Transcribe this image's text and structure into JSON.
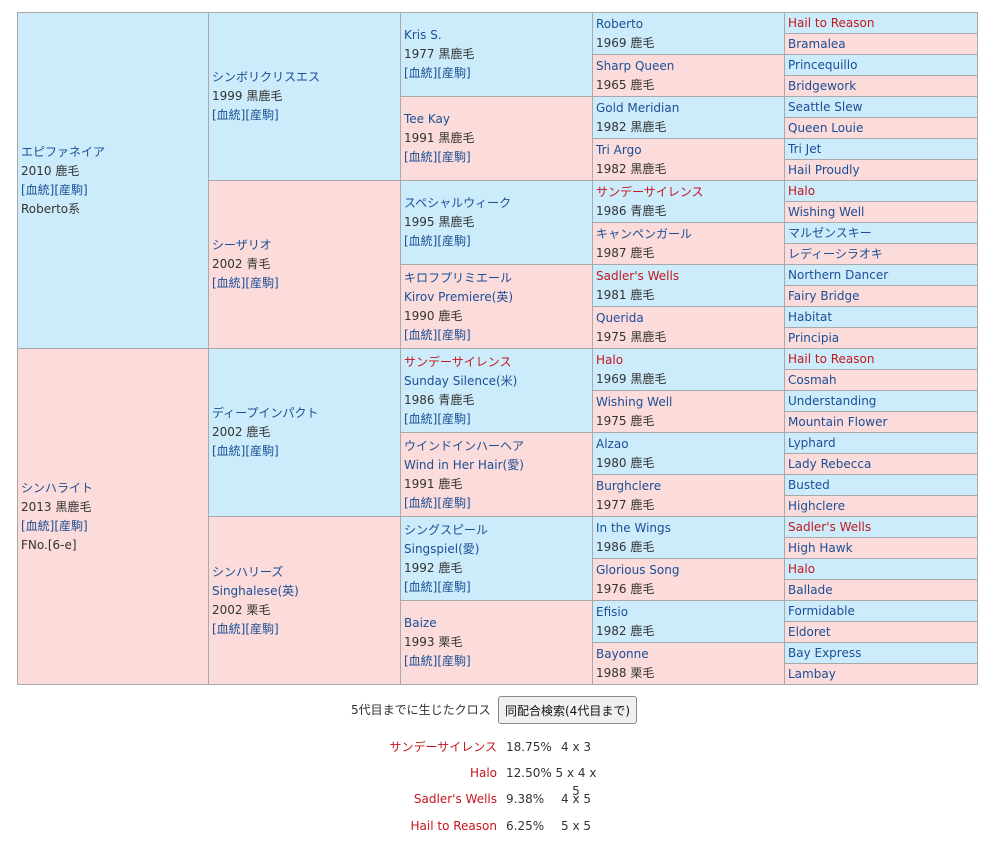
{
  "pedigree": {
    "g1": [
      {
        "name": "エピファネイア",
        "lines": [
          "2010 鹿毛"
        ],
        "links": "[血統][産駒]",
        "note": "Roberto系"
      },
      {
        "name": "シンハライト",
        "lines": [
          "2013 黒鹿毛"
        ],
        "links": "[血統][産駒]",
        "note": "FNo.[6-e]"
      }
    ],
    "g2": [
      {
        "name": "シンボリクリスエス",
        "lines": [
          "1999 黒鹿毛"
        ],
        "links": "[血統][産駒]"
      },
      {
        "name": "シーザリオ",
        "lines": [
          "2002 青毛"
        ],
        "links": "[血統][産駒]"
      },
      {
        "name": "ディープインパクト",
        "lines": [
          "2002 鹿毛"
        ],
        "links": "[血統][産駒]"
      },
      {
        "name": "シンハリーズ",
        "lines": [
          "Singhalese(英)",
          "2002 栗毛"
        ],
        "links": "[血統][産駒]"
      }
    ],
    "g3": [
      {
        "name": "Kris S.",
        "lines": [
          "1977 黒鹿毛"
        ],
        "links": "[血統][産駒]"
      },
      {
        "name": "Tee Kay",
        "lines": [
          "1991 黒鹿毛"
        ],
        "links": "[血統][産駒]"
      },
      {
        "name": "スペシャルウィーク",
        "lines": [
          "1995 黒鹿毛"
        ],
        "links": "[血統][産駒]"
      },
      {
        "name": "キロフプリミエール",
        "lines": [
          "Kirov Premiere(英)",
          "1990 鹿毛"
        ],
        "links": "[血統][産駒]"
      },
      {
        "name": "サンデーサイレンス",
        "lines": [
          "Sunday Silence(米)",
          "1986 青鹿毛"
        ],
        "links": "[血統][産駒]"
      },
      {
        "name": "ウインドインハーヘア",
        "lines": [
          "Wind in Her Hair(愛)",
          "1991 鹿毛"
        ],
        "links": "[血統][産駒]"
      },
      {
        "name": "シングスピール",
        "lines": [
          "Singspiel(愛)",
          "1992 鹿毛"
        ],
        "links": "[血統][産駒]"
      },
      {
        "name": "Baize",
        "lines": [
          "1993 栗毛"
        ],
        "links": "[血統][産駒]"
      }
    ],
    "g4": [
      {
        "name": "Roberto",
        "info": "1969 鹿毛"
      },
      {
        "name": "Sharp Queen",
        "info": "1965 鹿毛"
      },
      {
        "name": "Gold Meridian",
        "info": "1982 黒鹿毛"
      },
      {
        "name": "Tri Argo",
        "info": "1982 黒鹿毛"
      },
      {
        "name": "サンデーサイレンス",
        "info": "1986 青鹿毛"
      },
      {
        "name": "キャンペンガール",
        "info": "1987 鹿毛"
      },
      {
        "name": "Sadler's Wells",
        "info": "1981 鹿毛"
      },
      {
        "name": "Querida",
        "info": "1975 黒鹿毛"
      },
      {
        "name": "Halo",
        "info": "1969 黒鹿毛"
      },
      {
        "name": "Wishing Well",
        "info": "1975 鹿毛"
      },
      {
        "name": "Alzao",
        "info": "1980 鹿毛"
      },
      {
        "name": "Burghclere",
        "info": "1977 鹿毛"
      },
      {
        "name": "In the Wings",
        "info": "1986 鹿毛"
      },
      {
        "name": "Glorious Song",
        "info": "1976 鹿毛"
      },
      {
        "name": "Efisio",
        "info": "1982 鹿毛"
      },
      {
        "name": "Bayonne",
        "info": "1988 栗毛"
      }
    ],
    "g5": [
      {
        "name": "Hail to Reason"
      },
      {
        "name": "Bramalea"
      },
      {
        "name": "Princequillo"
      },
      {
        "name": "Bridgework"
      },
      {
        "name": "Seattle Slew"
      },
      {
        "name": "Queen Louie"
      },
      {
        "name": "Tri Jet"
      },
      {
        "name": "Hail Proudly"
      },
      {
        "name": "Halo"
      },
      {
        "name": "Wishing Well"
      },
      {
        "name": "マルゼンスキー"
      },
      {
        "name": "レディーシラオキ"
      },
      {
        "name": "Northern Dancer"
      },
      {
        "name": "Fairy Bridge"
      },
      {
        "name": "Habitat"
      },
      {
        "name": "Principia"
      },
      {
        "name": "Hail to Reason"
      },
      {
        "name": "Cosmah"
      },
      {
        "name": "Understanding"
      },
      {
        "name": "Mountain Flower"
      },
      {
        "name": "Lyphard"
      },
      {
        "name": "Lady Rebecca"
      },
      {
        "name": "Busted"
      },
      {
        "name": "Highclere"
      },
      {
        "name": "Sadler's Wells"
      },
      {
        "name": "High Hawk"
      },
      {
        "name": "Halo"
      },
      {
        "name": "Ballade"
      },
      {
        "name": "Formidable"
      },
      {
        "name": "Eldoret"
      },
      {
        "name": "Bay Express"
      },
      {
        "name": "Lambay"
      }
    ]
  },
  "crosses": {
    "title": "5代目までに生じたクロス",
    "search_button": "同配合検索(4代目まで)",
    "rows": [
      {
        "name": "サンデーサイレンス",
        "pct": "18.75%",
        "pattern": "4 x 3"
      },
      {
        "name": "Halo",
        "pct": "12.50%",
        "pattern": "5 x 4 x 5"
      },
      {
        "name": "Sadler's Wells",
        "pct": "9.38%",
        "pattern": "4 x 5"
      },
      {
        "name": "Hail to Reason",
        "pct": "6.25%",
        "pattern": "5 x 5"
      }
    ]
  },
  "cross_names": [
    "サンデーサイレンス",
    "Halo",
    "Sadler's Wells",
    "Hail to Reason"
  ]
}
